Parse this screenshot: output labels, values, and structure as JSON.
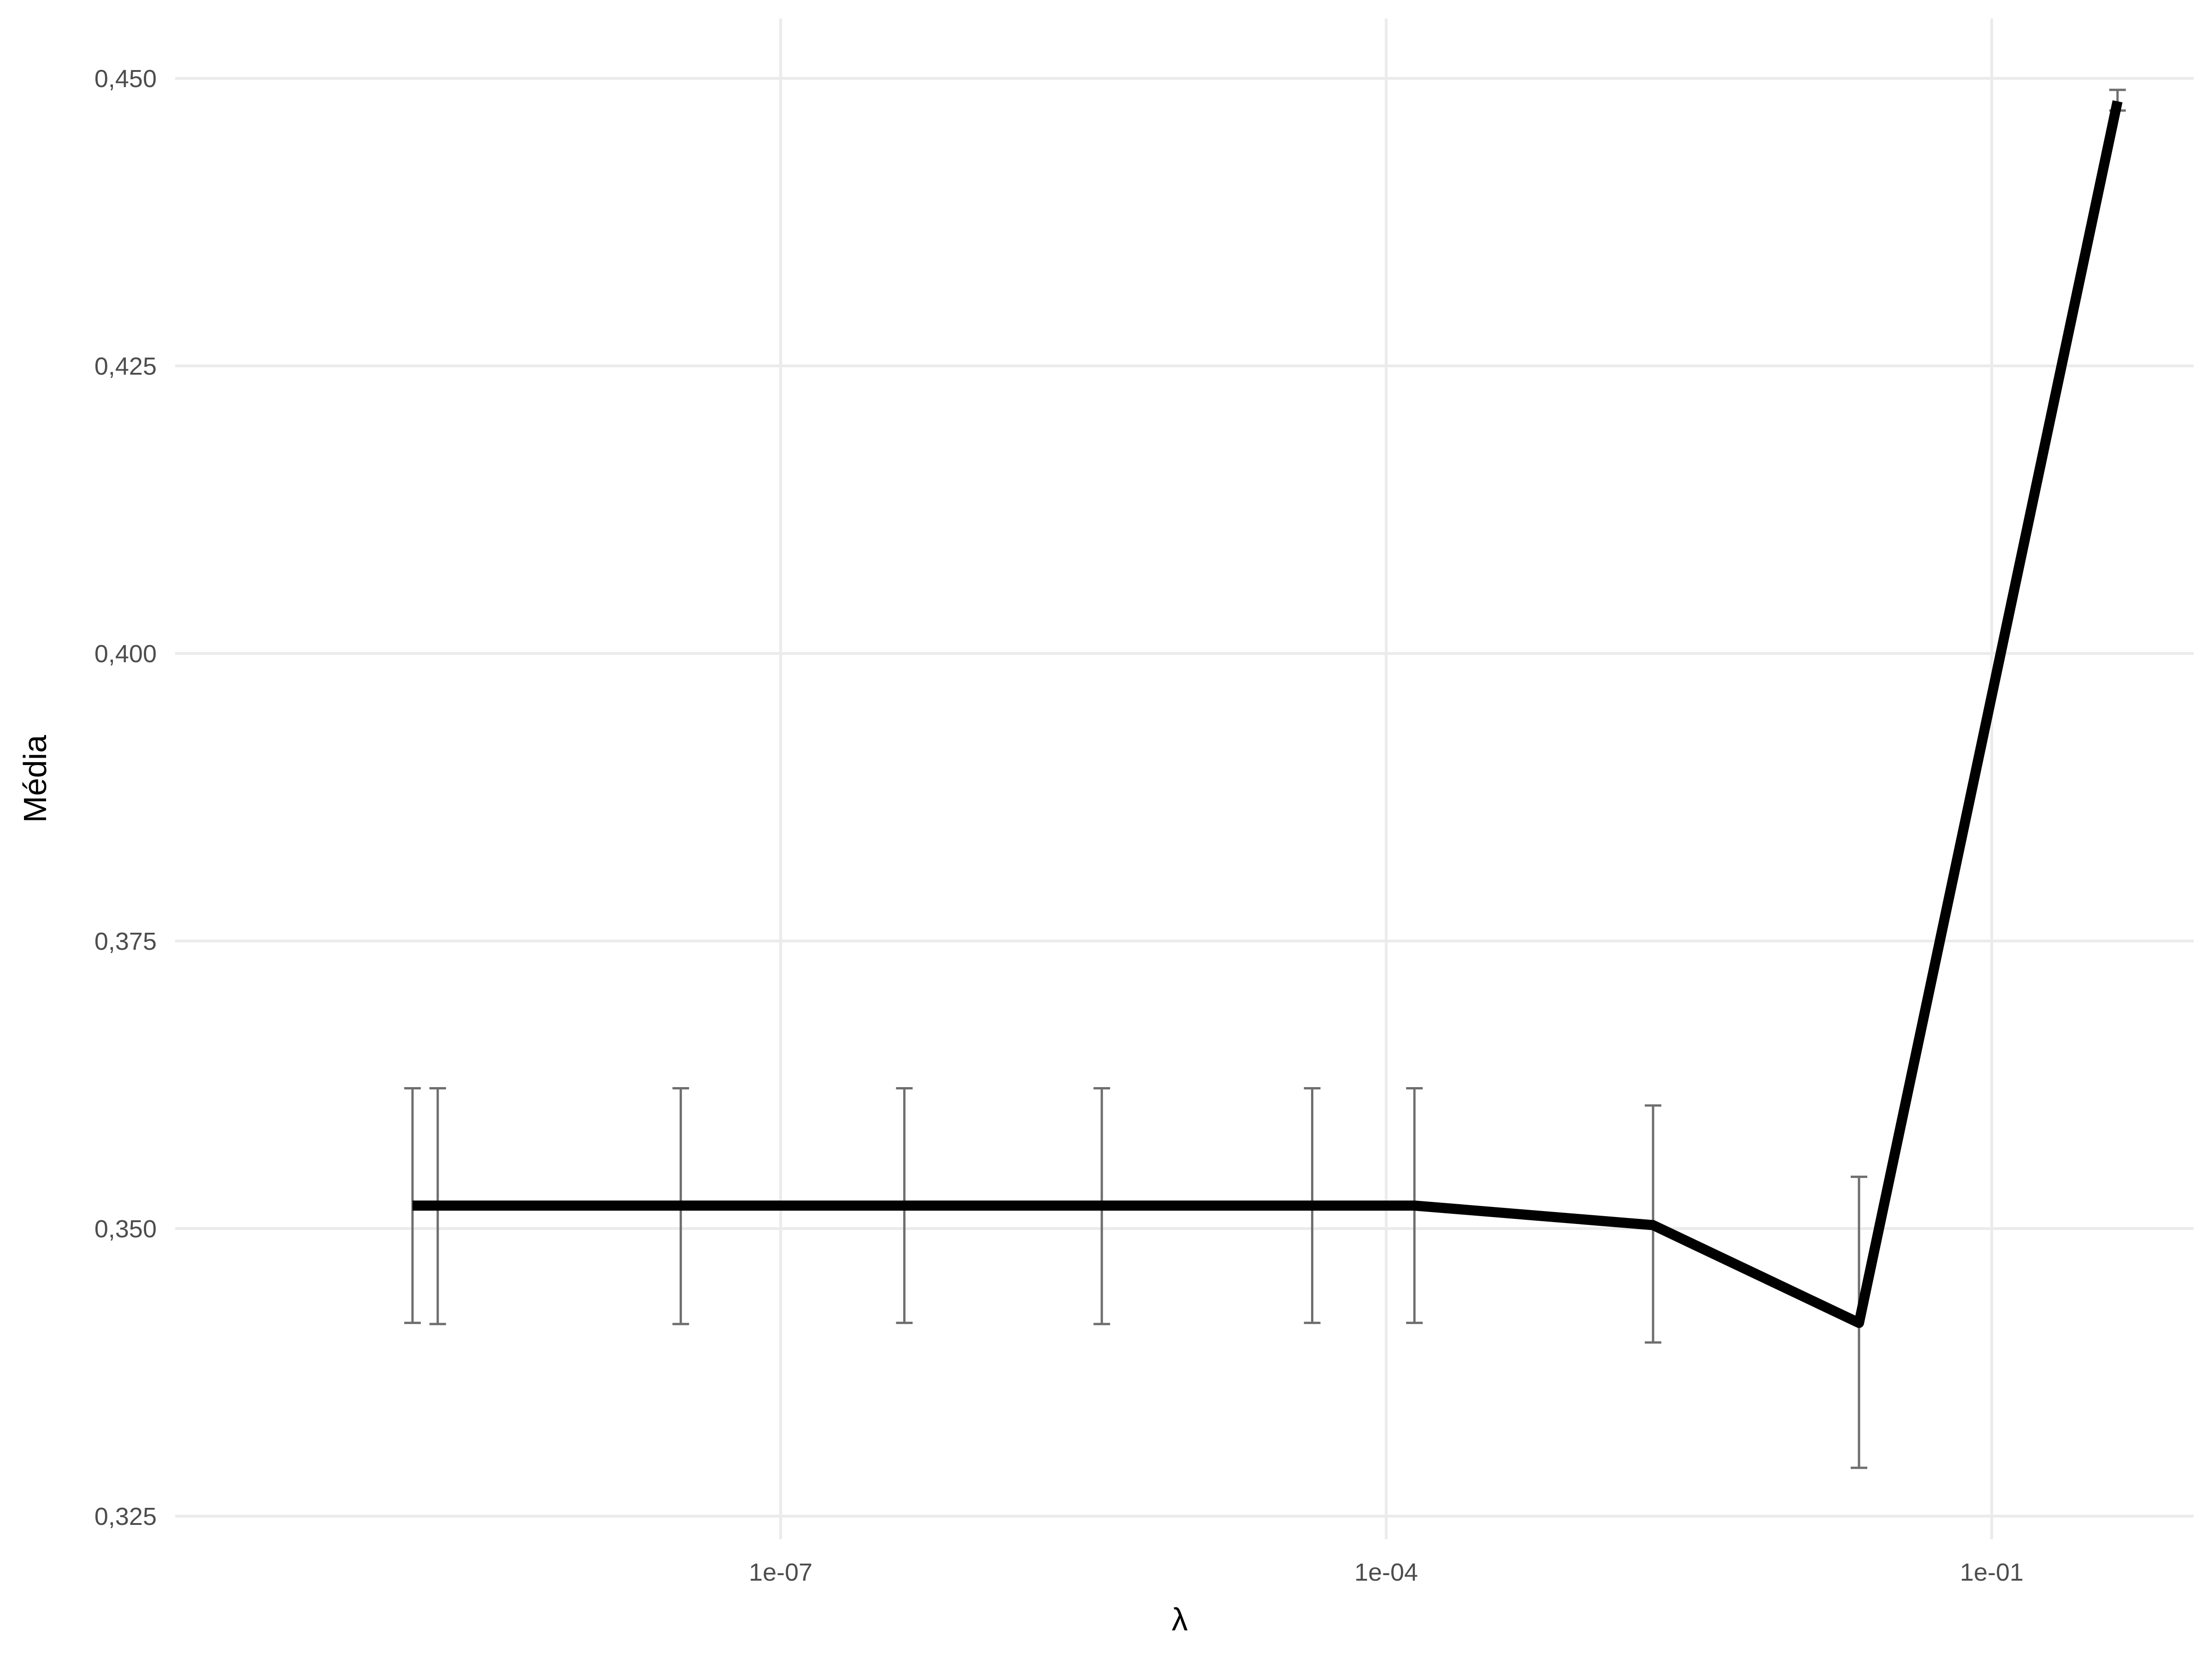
{
  "chart_data": {
    "type": "line",
    "xlabel": "λ",
    "ylabel": "Média",
    "xscale": "log10",
    "xlim": [
      1e-10,
      1
    ],
    "ylim": [
      0.325,
      0.45
    ],
    "x_ticks": [
      {
        "value": 1e-07,
        "label": "1e-07"
      },
      {
        "value": 0.0001,
        "label": "1e-04"
      },
      {
        "value": 0.1,
        "label": "1e-01"
      }
    ],
    "y_ticks": [
      {
        "value": 0.325,
        "label": "0,325"
      },
      {
        "value": 0.35,
        "label": "0,350"
      },
      {
        "value": 0.375,
        "label": "0,375"
      },
      {
        "value": 0.4,
        "label": "0,400"
      },
      {
        "value": 0.425,
        "label": "0,425"
      },
      {
        "value": 0.45,
        "label": "0,450"
      }
    ],
    "grid": true,
    "series": [
      {
        "color": "#000000",
        "points": [
          {
            "x": 1.5e-09,
            "y": 0.352,
            "ymin": 0.3418,
            "ymax": 0.3622
          },
          {
            "x": 2e-09,
            "y": 0.352,
            "ymin": 0.3417,
            "ymax": 0.3622
          },
          {
            "x": 3.2e-08,
            "y": 0.352,
            "ymin": 0.3417,
            "ymax": 0.3622
          },
          {
            "x": 4.1e-07,
            "y": 0.352,
            "ymin": 0.3418,
            "ymax": 0.3622
          },
          {
            "x": 3.9e-06,
            "y": 0.352,
            "ymin": 0.3417,
            "ymax": 0.3622
          },
          {
            "x": 4.3e-05,
            "y": 0.352,
            "ymin": 0.3418,
            "ymax": 0.3622
          },
          {
            "x": 0.000138,
            "y": 0.352,
            "ymin": 0.3418,
            "ymax": 0.3622
          },
          {
            "x": 0.0021,
            "y": 0.3503,
            "ymin": 0.3401,
            "ymax": 0.3607
          },
          {
            "x": 0.022,
            "y": 0.3418,
            "ymin": 0.3292,
            "ymax": 0.3545
          },
          {
            "x": 0.42,
            "y": 0.448,
            "ymin": 0.4472,
            "ymax": 0.449
          }
        ]
      }
    ]
  }
}
